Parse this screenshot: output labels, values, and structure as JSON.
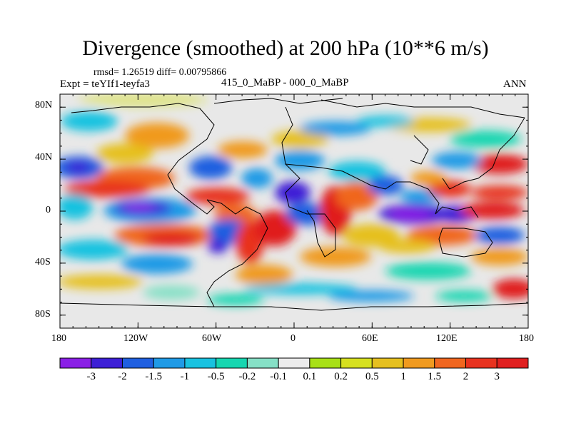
{
  "title": "Divergence (smoothed) at 200 hPa (10**6 m/s)",
  "rmsd_line": "rmsd= 1.26519 diff= 0.00795866",
  "experiment": "Expt = teYIf1-teyfa3",
  "comparison": "415_0_MaBP - 000_0_MaBP",
  "season": "ANN",
  "lat_ticks": [
    "80N",
    "40N",
    "0",
    "40S",
    "80S"
  ],
  "lon_ticks": [
    "180",
    "120W",
    "60W",
    "0",
    "60E",
    "120E",
    "180"
  ],
  "colorbar": {
    "levels": [
      "-3",
      "-2",
      "-1.5",
      "-1",
      "-0.5",
      "-0.2",
      "-0.1",
      "0.1",
      "0.2",
      "0.5",
      "1",
      "1.5",
      "2",
      "3"
    ],
    "colors": [
      "#8a1fe6",
      "#3d1fd6",
      "#1f5fe0",
      "#1f9ae6",
      "#19c2e0",
      "#16d6b0",
      "#86e0c6",
      "#ececec",
      "#a8e016",
      "#d6e01f",
      "#e6c01f",
      "#f09a1f",
      "#f0661f",
      "#e8321f",
      "#e01f1f"
    ]
  }
}
